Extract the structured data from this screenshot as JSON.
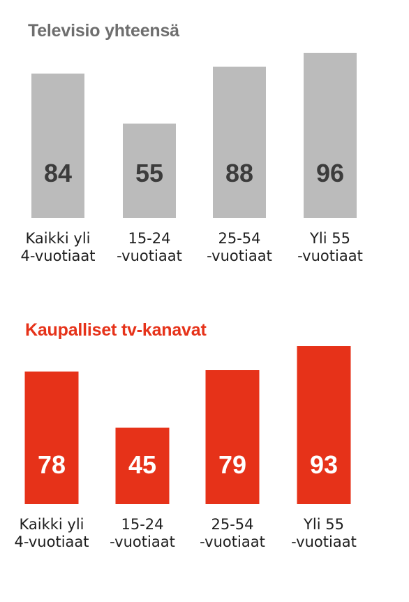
{
  "chart_data": [
    {
      "type": "bar",
      "title": "Televisio yhteensä",
      "categories": [
        [
          "Kaikki yli",
          "4-vuotiaat"
        ],
        [
          "15-24",
          "-vuotiaat"
        ],
        [
          "25-54",
          "-vuotiaat"
        ],
        [
          "Yli 55",
          "-vuotiaat"
        ]
      ],
      "values": [
        84,
        55,
        88,
        96
      ],
      "xlabel": "",
      "ylabel": "",
      "grid": false,
      "colors": {
        "bar": "#bbbbbb",
        "label": "#3c3c3c",
        "title": "#6e6e6e"
      }
    },
    {
      "type": "bar",
      "title": "Kaupalliset tv-kanavat",
      "categories": [
        [
          "Kaikki yli",
          "4-vuotiaat"
        ],
        [
          "15-24",
          "-vuotiaat"
        ],
        [
          "25-54",
          "-vuotiaat"
        ],
        [
          "Yli 55",
          "-vuotiaat"
        ]
      ],
      "values": [
        78,
        45,
        79,
        93
      ],
      "xlabel": "",
      "ylabel": "",
      "grid": false,
      "colors": {
        "bar": "#e63219",
        "label": "#ffffff",
        "title": "#e63219"
      }
    }
  ]
}
